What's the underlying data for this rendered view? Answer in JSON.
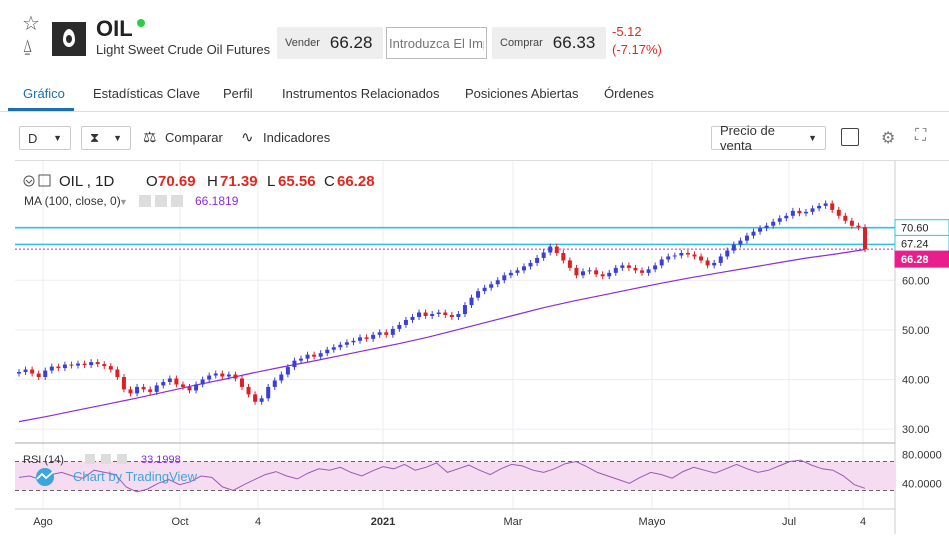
{
  "instrument": {
    "symbol": "OIL",
    "name": "Light Sweet Crude Oil Futures",
    "sell_label": "Vender",
    "sell_price": "66.28",
    "quantity_placeholder": "Introduzca El Imp",
    "buy_label": "Comprar",
    "buy_price": "66.33",
    "change_abs": "-5.12",
    "change_pct": "(-7.17%)",
    "status_color": "#2ecc40"
  },
  "icons": [
    "star-icon",
    "alert-icon",
    "oil-drop-icon",
    "compare-icon",
    "indicators-icon",
    "settings-icon",
    "fullscreen-icon"
  ],
  "tabs": [
    {
      "label": "Gráfico",
      "active": true
    },
    {
      "label": "Estadísticas Clave",
      "active": false
    },
    {
      "label": "Perfil",
      "active": false
    },
    {
      "label": "Instrumentos Relacionados",
      "active": false
    },
    {
      "label": "Posiciones Abiertas",
      "active": false
    },
    {
      "label": "Órdenes",
      "active": false
    }
  ],
  "toolbar": {
    "interval": "D",
    "compare_label": "Comparar",
    "indicators_label": "Indicadores",
    "price_type": "Precio de venta"
  },
  "chart_data": {
    "type": "candlestick",
    "legend": {
      "symbol_label": "OIL , 1D",
      "open_label": "O",
      "open": "70.69",
      "high_label": "H",
      "high": "71.39",
      "low_label": "L",
      "low": "65.56",
      "close_label": "C",
      "close": "66.28",
      "ma_label": "MA (100, close, 0)",
      "ma_value": "66.1819"
    },
    "x_ticks": [
      "Ago",
      "Oct",
      "4",
      "2021",
      "Mar",
      "Mayo",
      "Jul",
      "4"
    ],
    "y_ticks": [
      "30.00",
      "40.00",
      "50.00",
      "60.00"
    ],
    "ylim": [
      28,
      78
    ],
    "price_lines": [
      {
        "value": 70.6,
        "label": "70.60",
        "color": "#2ec4e0"
      },
      {
        "value": 67.24,
        "label": "67.24",
        "color": "#2ec4e0"
      },
      {
        "value": 66.28,
        "label": "66.28",
        "color": "#e91e8c"
      }
    ],
    "closes": [
      41.5,
      42.0,
      41.2,
      40.5,
      41.8,
      42.6,
      42.3,
      43.0,
      42.8,
      43.2,
      42.9,
      43.5,
      43.1,
      42.7,
      42.0,
      40.5,
      38.0,
      37.2,
      38.5,
      38.0,
      37.5,
      38.8,
      39.5,
      40.2,
      39.0,
      38.5,
      37.8,
      39.0,
      40.0,
      40.8,
      41.2,
      40.6,
      41.0,
      40.2,
      38.5,
      37.0,
      35.5,
      36.2,
      38.5,
      39.8,
      41.0,
      42.5,
      43.8,
      44.2,
      45.0,
      44.6,
      45.3,
      46.0,
      46.5,
      47.0,
      47.5,
      47.8,
      48.5,
      48.2,
      49.0,
      49.5,
      49.0,
      50.2,
      51.0,
      52.0,
      52.6,
      53.5,
      52.8,
      53.2,
      53.5,
      53.0,
      52.6,
      53.2,
      55.0,
      56.5,
      57.8,
      58.5,
      59.2,
      60.0,
      61.0,
      61.5,
      62.0,
      62.8,
      63.5,
      64.5,
      65.6,
      66.8,
      65.5,
      64.0,
      62.5,
      61.0,
      61.8,
      62.0,
      61.2,
      60.8,
      61.5,
      62.5,
      63.0,
      62.5,
      62.0,
      61.5,
      62.2,
      63.0,
      64.2,
      64.8,
      65.0,
      65.5,
      65.2,
      64.8,
      64.0,
      63.0,
      63.5,
      64.8,
      66.0,
      67.2,
      68.0,
      69.0,
      69.8,
      70.5,
      71.0,
      71.8,
      72.5,
      73.0,
      74.0,
      73.5,
      73.8,
      74.5,
      75.0,
      75.5,
      74.2,
      73.0,
      72.0,
      71.0,
      70.7,
      66.28
    ],
    "ma_closes": [
      31.5,
      32.6,
      33.8,
      35.0,
      36.2,
      37.5,
      38.8,
      40.0,
      41.3,
      42.5,
      43.6,
      44.8,
      46.0,
      47.2,
      48.5,
      50.0,
      51.5,
      53.0,
      54.5,
      55.8,
      57.0,
      58.2,
      59.4,
      60.5,
      61.5,
      62.5,
      63.5,
      64.5,
      65.3,
      66.2
    ],
    "rsi": {
      "label": "RSI (14)",
      "value": "33.1998",
      "ticks": [
        "80.0000",
        "40.0000"
      ],
      "bands": [
        70,
        30
      ],
      "values": [
        48,
        50,
        45,
        52,
        55,
        50,
        47,
        58,
        55,
        52,
        35,
        28,
        32,
        40,
        45,
        38,
        42,
        50,
        48,
        35,
        30,
        38,
        45,
        52,
        56,
        50,
        46,
        54,
        60,
        58,
        62,
        55,
        50,
        57,
        63,
        60,
        66,
        58,
        62,
        68,
        55,
        60,
        65,
        58,
        52,
        60,
        66,
        64,
        58,
        55,
        60,
        67,
        70,
        63,
        55,
        50,
        45,
        40,
        48,
        55,
        52,
        47,
        56,
        62,
        58,
        54,
        60,
        66,
        60,
        55,
        58,
        64,
        70,
        72,
        65,
        60,
        58,
        50,
        38,
        33
      ]
    },
    "watermark": "Chart by TradingView"
  }
}
